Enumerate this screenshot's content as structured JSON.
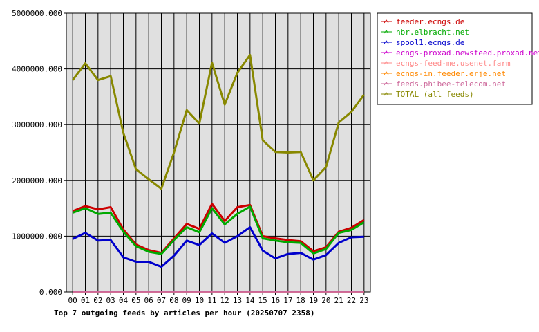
{
  "chart_data": {
    "type": "line",
    "title": "Top 7 outgoing feeds by articles per hour (20250707 2358)",
    "xlabel": "",
    "ylabel": "",
    "ylim": [
      0,
      5000000
    ],
    "yticks": [
      "0.000",
      "1000000.000",
      "2000000.000",
      "3000000.000",
      "4000000.000",
      "5000000.000"
    ],
    "categories": [
      "00",
      "01",
      "02",
      "03",
      "04",
      "05",
      "06",
      "07",
      "08",
      "09",
      "10",
      "11",
      "12",
      "13",
      "14",
      "15",
      "16",
      "17",
      "18",
      "19",
      "20",
      "21",
      "22",
      "23"
    ],
    "grid": true,
    "legend_position": "top-right",
    "series": [
      {
        "name": "feeder.ecngs.de",
        "color": "#cc0000",
        "values": [
          1450000,
          1540000,
          1480000,
          1520000,
          1120000,
          850000,
          750000,
          700000,
          960000,
          1220000,
          1130000,
          1580000,
          1270000,
          1520000,
          1560000,
          1000000,
          960000,
          930000,
          910000,
          730000,
          800000,
          1080000,
          1150000,
          1290000
        ]
      },
      {
        "name": "nbr.elbracht.net",
        "color": "#00aa00",
        "values": [
          1420000,
          1500000,
          1400000,
          1420000,
          1080000,
          820000,
          720000,
          680000,
          930000,
          1160000,
          1070000,
          1500000,
          1210000,
          1400000,
          1530000,
          960000,
          920000,
          890000,
          880000,
          690000,
          770000,
          1060000,
          1110000,
          1250000
        ]
      },
      {
        "name": "spool1.ecngs.de",
        "color": "#0000cc",
        "values": [
          950000,
          1060000,
          920000,
          930000,
          620000,
          540000,
          540000,
          450000,
          650000,
          920000,
          840000,
          1050000,
          880000,
          1000000,
          1160000,
          740000,
          600000,
          680000,
          700000,
          580000,
          660000,
          880000,
          980000,
          990000
        ]
      },
      {
        "name": "ecngs-proxad.newsfeed.proxad.net",
        "color": "#cc00cc",
        "values": [
          10000,
          10000,
          10000,
          10000,
          10000,
          10000,
          10000,
          10000,
          10000,
          10000,
          10000,
          10000,
          10000,
          10000,
          10000,
          10000,
          10000,
          10000,
          10000,
          10000,
          10000,
          10000,
          10000,
          10000
        ]
      },
      {
        "name": "ecngs-feed-me.usenet.farm",
        "color": "#ff8888",
        "values": [
          8000,
          8000,
          8000,
          8000,
          8000,
          8000,
          8000,
          8000,
          8000,
          8000,
          8000,
          8000,
          8000,
          8000,
          8000,
          8000,
          8000,
          8000,
          8000,
          8000,
          8000,
          8000,
          8000,
          8000
        ]
      },
      {
        "name": "ecngs-in.feeder.erje.net",
        "color": "#ff8800",
        "values": [
          6000,
          6000,
          6000,
          6000,
          6000,
          6000,
          6000,
          6000,
          6000,
          6000,
          6000,
          6000,
          6000,
          6000,
          6000,
          6000,
          6000,
          6000,
          6000,
          6000,
          6000,
          6000,
          6000,
          6000
        ]
      },
      {
        "name": "feeds.phibee-telecom.net",
        "color": "#cc6699",
        "values": [
          5000,
          5000,
          5000,
          5000,
          5000,
          5000,
          5000,
          5000,
          5000,
          5000,
          5000,
          5000,
          5000,
          5000,
          5000,
          5000,
          5000,
          5000,
          5000,
          5000,
          5000,
          5000,
          5000,
          5000
        ]
      },
      {
        "name": "TOTAL (all feeds)",
        "color": "#888800",
        "values": [
          3800000,
          4100000,
          3800000,
          3870000,
          2850000,
          2200000,
          2020000,
          1850000,
          2500000,
          3260000,
          3020000,
          4110000,
          3360000,
          3930000,
          4250000,
          2720000,
          2510000,
          2500000,
          2510000,
          2000000,
          2240000,
          3040000,
          3230000,
          3540000
        ]
      }
    ]
  }
}
